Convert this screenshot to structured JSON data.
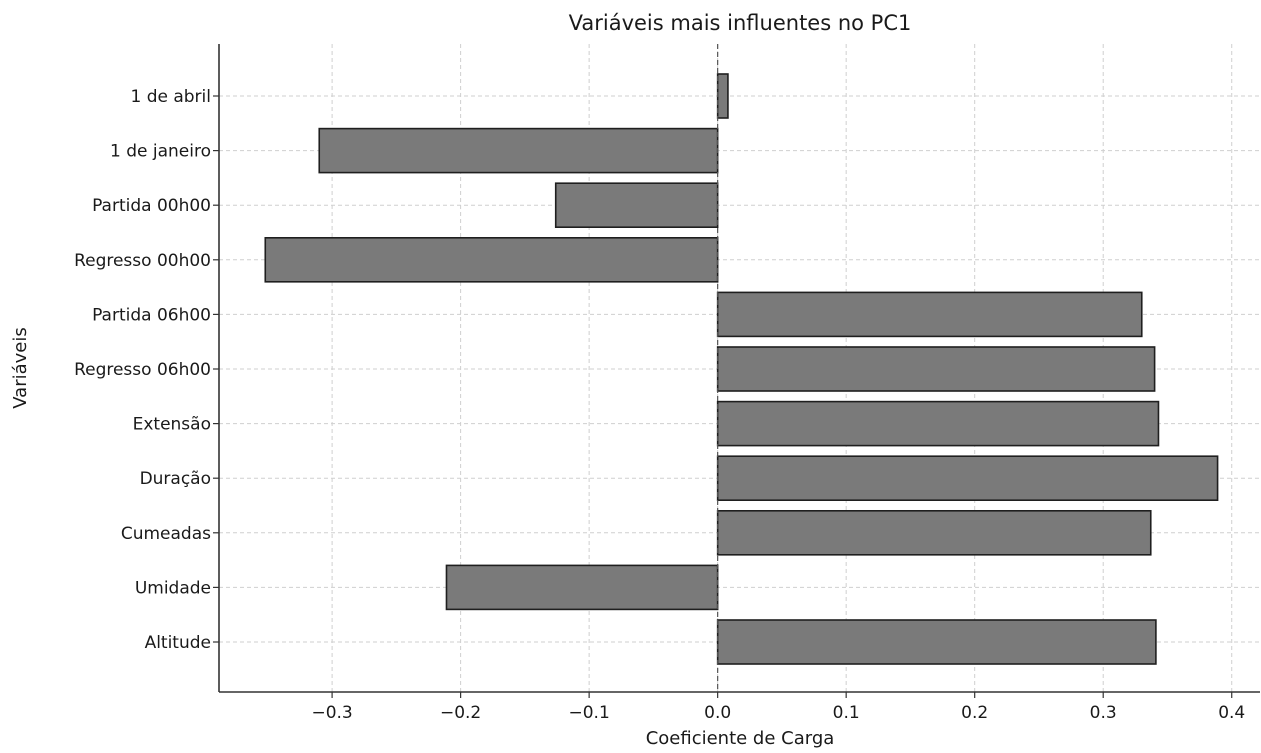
{
  "chart_data": {
    "type": "bar",
    "orientation": "horizontal",
    "title": "Variáveis mais influentes no PC1",
    "xlabel": "Coeficiente de Carga",
    "ylabel": "Variáveis",
    "categories": [
      "1 de abril",
      "1 de janeiro",
      "Partida 00h00",
      "Regresso 00h00",
      "Partida 06h00",
      "Regresso 06h00",
      "Extensão",
      "Duração",
      "Cumeadas",
      "Umidade",
      "Altitude"
    ],
    "values": [
      0.008,
      -0.31,
      -0.126,
      -0.352,
      0.33,
      0.34,
      0.343,
      0.389,
      0.337,
      -0.211,
      0.341
    ],
    "xlim": [
      -0.388,
      0.422
    ],
    "xticks": [
      -0.3,
      -0.2,
      -0.1,
      0.0,
      0.1,
      0.2,
      0.3,
      0.4
    ],
    "xtick_labels": [
      "−0.3",
      "−0.2",
      "−0.1",
      "0.0",
      "0.1",
      "0.2",
      "0.3",
      "0.4"
    ],
    "grid": true,
    "zero_reference_line": true,
    "bar_color": "#7a7a7a",
    "bar_edge_color": "#1f1f1f"
  }
}
